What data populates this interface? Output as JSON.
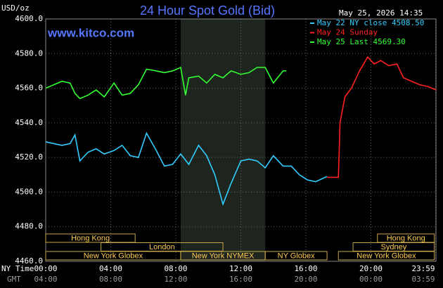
{
  "chart_data": {
    "type": "line",
    "title": "24 Hour Spot Gold (Bid)",
    "y_label": "USD/oz",
    "source": "www.kitco.com",
    "timestamp": "May 25, 2026 14:35",
    "x_label": "NY Time",
    "x2_label": "GMT",
    "xlim": [
      0,
      24
    ],
    "xticks": [
      {
        "value": 0,
        "label": "00:00"
      },
      {
        "value": 4,
        "label": "04:00"
      },
      {
        "value": 8,
        "label": "08:00"
      },
      {
        "value": 12,
        "label": "12:00"
      },
      {
        "value": 16,
        "label": "16:00"
      },
      {
        "value": 20,
        "label": "20:00"
      },
      {
        "value": 23.98,
        "label": "23:59"
      }
    ],
    "x2ticks": [
      {
        "value": 0,
        "label": "04:00"
      },
      {
        "value": 4,
        "label": "08:00"
      },
      {
        "value": 8,
        "label": "12:00"
      },
      {
        "value": 12,
        "label": "16:00"
      },
      {
        "value": 16,
        "label": "20:00"
      },
      {
        "value": 20,
        "label": "00:00"
      },
      {
        "value": 23.98,
        "label": "03:59"
      }
    ],
    "ylim": [
      4460,
      4600
    ],
    "yticks": [
      {
        "value": 4460,
        "label": "4460.0"
      },
      {
        "value": 4480,
        "label": "4480.0"
      },
      {
        "value": 4500,
        "label": "4500.0"
      },
      {
        "value": 4520,
        "label": "4520.0"
      },
      {
        "value": 4540,
        "label": "4540.0"
      },
      {
        "value": 4560,
        "label": "4560.0"
      },
      {
        "value": 4580,
        "label": "4580.0"
      },
      {
        "value": 4600,
        "label": "4600.0"
      }
    ],
    "grid": true,
    "shaded": [
      8.3,
      13.5
    ],
    "series": [
      {
        "name": "May 22 NY close 4508.50",
        "color": "#33ccff",
        "x": [
          0,
          0.5,
          1,
          1.5,
          1.8,
          2.1,
          2.6,
          3.1,
          3.6,
          4.2,
          4.7,
          5.2,
          5.7,
          6.2,
          6.8,
          7.3,
          7.8,
          8.3,
          8.8,
          9.4,
          9.9,
          10.4,
          10.9,
          11.4,
          12,
          12.5,
          13,
          13.5,
          14,
          14.6,
          15.1,
          15.6,
          16.1,
          16.6,
          17.3
        ],
        "values": [
          4529,
          4528,
          4527,
          4528,
          4533,
          4518,
          4523,
          4525,
          4522,
          4524,
          4527,
          4521,
          4520,
          4534,
          4524,
          4515,
          4516,
          4522,
          4516,
          4527,
          4521,
          4510,
          4493,
          4505,
          4518,
          4519,
          4518,
          4514,
          4521,
          4515,
          4515,
          4510,
          4507,
          4506,
          4509
        ]
      },
      {
        "name": "May 24 Sunday",
        "color": "#ff2020",
        "x": [
          17.3,
          18,
          18.1,
          18.4,
          18.8,
          19.3,
          19.8,
          20.2,
          20.6,
          21.1,
          21.6,
          22,
          22.5,
          23,
          23.5,
          24
        ],
        "values": [
          4508.5,
          4508.5,
          4540,
          4555,
          4560,
          4570,
          4578,
          4574,
          4576,
          4573,
          4574,
          4566,
          4564,
          4562,
          4561,
          4559
        ]
      },
      {
        "name": "May 25 Last 4569.30",
        "color": "#33ff33",
        "x": [
          0,
          0.5,
          1,
          1.5,
          1.8,
          2.1,
          2.6,
          3.1,
          3.6,
          4.2,
          4.7,
          5.2,
          5.7,
          6.2,
          6.8,
          7.3,
          7.8,
          8.3,
          8.6,
          8.8,
          9.4,
          9.9,
          10.4,
          10.9,
          11.4,
          12,
          12.5,
          13,
          13.5,
          14,
          14.6,
          14.8
        ],
        "values": [
          4560,
          4562,
          4564,
          4563,
          4557,
          4554,
          4556,
          4559,
          4555,
          4563,
          4556,
          4557,
          4562,
          4571,
          4570,
          4569,
          4570,
          4572,
          4556,
          4566,
          4567,
          4563,
          4568,
          4566,
          4570,
          4568,
          4569,
          4572,
          4572,
          4563,
          4570,
          4570
        ]
      }
    ],
    "sessions": [
      {
        "label": "Hong Kong",
        "start": 0,
        "end": 5.5,
        "row": 0
      },
      {
        "label": "Hong Kong",
        "start": 20.4,
        "end": 23.9,
        "row": 0
      },
      {
        "label": "London",
        "start": 3.4,
        "end": 10.9,
        "row": 1
      },
      {
        "label": "Sydney",
        "start": 18.9,
        "end": 23.9,
        "row": 1
      },
      {
        "label": "New York Globex",
        "start": 0,
        "end": 8.3,
        "row": 2
      },
      {
        "label": "New York NYMEX",
        "start": 8.3,
        "end": 13.5,
        "row": 2
      },
      {
        "label": "NY Globex",
        "start": 13.5,
        "end": 17.3,
        "row": 2
      },
      {
        "label": "New York Globex",
        "start": 18,
        "end": 23.9,
        "row": 2
      }
    ]
  }
}
